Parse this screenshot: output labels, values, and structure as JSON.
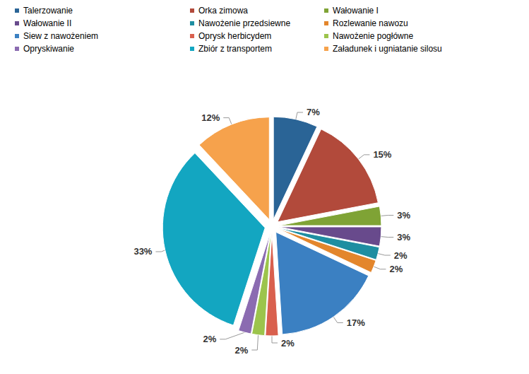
{
  "chart_data": {
    "type": "pie",
    "categories": [
      "Talerzowanie",
      "Orka zimowa",
      "Wałowanie I",
      "Wałowanie II",
      "Nawożenie przedsiewne",
      "Rozlewanie nawozu",
      "Siew z nawożeniem",
      "Oprysk herbicydem",
      "Nawożenie pogłówne",
      "Opryskiwanie",
      "Zbiór z transportem",
      "Załadunek i ugniatanie silosu"
    ],
    "values": [
      7,
      15,
      3,
      3,
      2,
      2,
      17,
      2,
      2,
      2,
      33,
      12
    ],
    "value_labels": [
      "7%",
      "15%",
      "3%",
      "3%",
      "2%",
      "2%",
      "17%",
      "2%",
      "2%",
      "2%",
      "33%",
      "12%"
    ],
    "colors": [
      "#2A6496",
      "#B24A3B",
      "#7FA335",
      "#684A8C",
      "#1E8EA1",
      "#E3862C",
      "#3B80C2",
      "#D9604E",
      "#9CC44C",
      "#8B6BB1",
      "#13A6C1",
      "#F6A24C"
    ],
    "data_labels": true,
    "legend": "top"
  }
}
